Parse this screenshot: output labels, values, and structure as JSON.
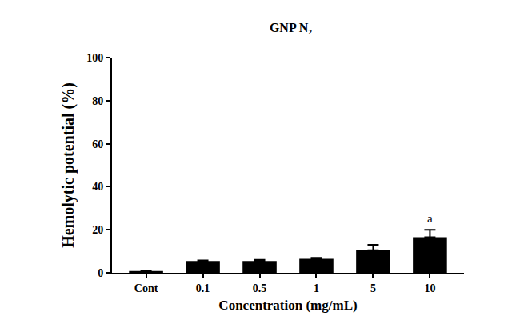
{
  "chart_data": {
    "type": "bar",
    "title": "GNP N₂",
    "x_label": "Concentration (mg/mL)",
    "y_label": "Hemolytic potential (%)",
    "categories": [
      "Cont",
      "0.1",
      "0.5",
      "1",
      "5",
      "10"
    ],
    "values": [
      0.8,
      5.5,
      5.5,
      6.5,
      10.5,
      16.5
    ],
    "errors": [
      0.3,
      0.3,
      0.5,
      0.5,
      2.5,
      3.5
    ],
    "color": "#000000",
    "ylim": [
      0,
      100
    ],
    "yticks": [
      0,
      20,
      40,
      60,
      80,
      100
    ],
    "grid": false,
    "annotations": [
      {
        "category": "10",
        "text": "a"
      }
    ]
  }
}
